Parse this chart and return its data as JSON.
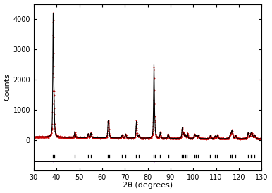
{
  "title": "",
  "xlabel": "2θ (degrees)",
  "ylabel": "Counts",
  "xlim": [
    30,
    130
  ],
  "ylim": [
    -1000,
    4500
  ],
  "yticks_main": [
    0,
    1000,
    2000,
    3000,
    4000
  ],
  "xticks": [
    30,
    40,
    50,
    60,
    70,
    80,
    90,
    100,
    110,
    120,
    130
  ],
  "data_color": "#cc0000",
  "calc_color": "#000000",
  "diff_color": "#8800cc",
  "marker_color": "#000000",
  "reflection_markers": [
    38.5,
    38.9,
    48.0,
    53.8,
    55.0,
    62.6,
    63.0,
    68.8,
    70.3,
    75.0,
    76.0,
    82.7,
    83.1,
    85.5,
    89.0,
    95.1,
    95.7,
    96.4,
    97.3,
    100.5,
    101.2,
    102.1,
    107.4,
    109.5,
    110.5,
    116.2,
    116.8,
    117.0,
    118.5,
    124.0,
    125.2,
    125.7,
    126.9
  ],
  "background_color": "#ffffff",
  "diff_baseline": -700,
  "marker_y": -530,
  "seed": 42
}
